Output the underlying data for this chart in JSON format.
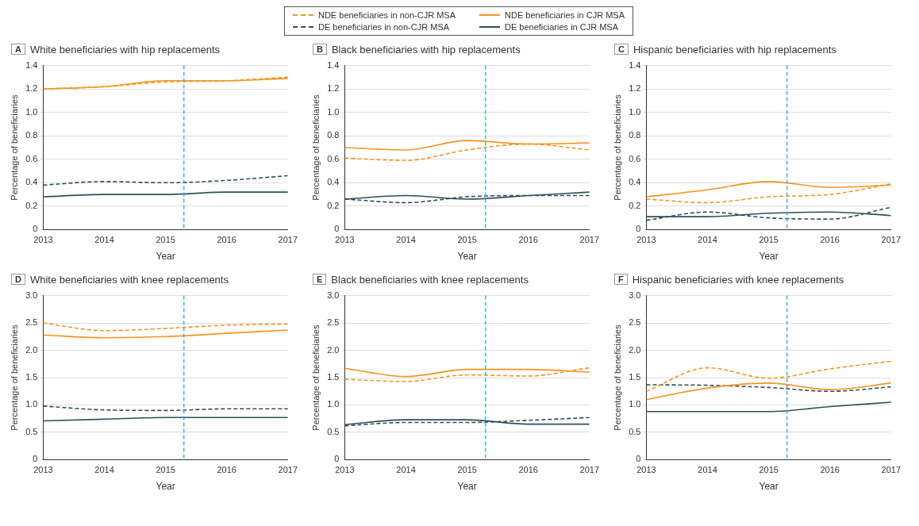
{
  "chart_data": [
    {
      "type": "line",
      "title": "White beneficiaries with hip replacements",
      "annotations": [
        "A"
      ],
      "xlabel": "Year",
      "ylabel": "Percentage of beneficiaries",
      "x": [
        2013,
        2014,
        2015,
        2016,
        2017
      ],
      "xlim": [
        2013,
        2017
      ],
      "xticks": [
        2013,
        2014,
        2015,
        2016,
        2017
      ],
      "ylim": [
        0,
        1.4
      ],
      "yticks": [
        {
          "value": 0,
          "label": "0"
        },
        {
          "value": 0.2,
          "label": "0.2"
        },
        {
          "value": 0.4,
          "label": "0.4"
        },
        {
          "value": 0.6,
          "label": "0.6"
        },
        {
          "value": 0.8,
          "label": "0.8"
        },
        {
          "value": 1,
          "label": "1.0"
        },
        {
          "value": 1.2,
          "label": "1.2"
        },
        {
          "value": 1.4,
          "label": "1.4"
        }
      ],
      "grid": "y",
      "legend": "top",
      "marker": "none",
      "ref_lines": [
        {
          "axis": "x",
          "value": 2015.3,
          "color": "#29abe2",
          "line_style": "dashed"
        }
      ],
      "series": [
        {
          "name": "NDE beneficiaries in non-CJR MSA",
          "color": "#f7941d",
          "line_style": "dashed",
          "values": [
            1.2,
            1.22,
            1.26,
            1.27,
            1.3
          ]
        },
        {
          "name": "NDE beneficiaries in CJR MSA",
          "color": "#f7941d",
          "line_style": "solid",
          "values": [
            1.2,
            1.22,
            1.27,
            1.27,
            1.29
          ]
        },
        {
          "name": "DE beneficiaries in non-CJR MSA",
          "color": "#2f4f5a",
          "line_style": "dashed",
          "values": [
            0.38,
            0.41,
            0.4,
            0.42,
            0.46
          ]
        },
        {
          "name": "DE beneficiaries in CJR MSA",
          "color": "#2f4f5a",
          "line_style": "solid",
          "values": [
            0.28,
            0.3,
            0.3,
            0.32,
            0.32
          ]
        }
      ]
    },
    {
      "type": "line",
      "title": "Black beneficiaries with hip replacements",
      "annotations": [
        "B"
      ],
      "xlabel": "Year",
      "ylabel": "Percentage of beneficiaries",
      "x": [
        2013,
        2014,
        2015,
        2016,
        2017
      ],
      "xlim": [
        2013,
        2017
      ],
      "xticks": [
        2013,
        2014,
        2015,
        2016,
        2017
      ],
      "ylim": [
        0,
        1.4
      ],
      "yticks": [
        {
          "value": 0,
          "label": "0"
        },
        {
          "value": 0.2,
          "label": "0.2"
        },
        {
          "value": 0.4,
          "label": "0.4"
        },
        {
          "value": 0.6,
          "label": "0.6"
        },
        {
          "value": 0.8,
          "label": "0.8"
        },
        {
          "value": 1,
          "label": "1.0"
        },
        {
          "value": 1.2,
          "label": "1.2"
        },
        {
          "value": 1.4,
          "label": "1.4"
        }
      ],
      "grid": "y",
      "marker": "none",
      "ref_lines": [
        {
          "axis": "x",
          "value": 2015.3,
          "color": "#29abe2",
          "line_style": "dashed"
        }
      ],
      "series": [
        {
          "color": "#f7941d",
          "line_style": "dashed",
          "values": [
            0.61,
            0.59,
            0.68,
            0.73,
            0.68
          ]
        },
        {
          "color": "#f7941d",
          "line_style": "solid",
          "values": [
            0.7,
            0.68,
            0.76,
            0.73,
            0.74
          ]
        },
        {
          "color": "#2f4f5a",
          "line_style": "dashed",
          "values": [
            0.26,
            0.23,
            0.28,
            0.29,
            0.29
          ]
        },
        {
          "color": "#2f4f5a",
          "line_style": "solid",
          "values": [
            0.26,
            0.29,
            0.26,
            0.29,
            0.32
          ]
        }
      ]
    },
    {
      "type": "line",
      "title": "Hispanic beneficiaries with hip replacements",
      "annotations": [
        "C"
      ],
      "xlabel": "Year",
      "ylabel": "Percentage of beneficiaries",
      "x": [
        2013,
        2014,
        2015,
        2016,
        2017
      ],
      "xlim": [
        2013,
        2017
      ],
      "xticks": [
        2013,
        2014,
        2015,
        2016,
        2017
      ],
      "ylim": [
        0,
        1.4
      ],
      "yticks": [
        {
          "value": 0,
          "label": "0"
        },
        {
          "value": 0.2,
          "label": "0.2"
        },
        {
          "value": 0.4,
          "label": "0.4"
        },
        {
          "value": 0.6,
          "label": "0.6"
        },
        {
          "value": 0.8,
          "label": "0.8"
        },
        {
          "value": 1,
          "label": "1.0"
        },
        {
          "value": 1.2,
          "label": "1.2"
        },
        {
          "value": 1.4,
          "label": "1.4"
        }
      ],
      "grid": "y",
      "marker": "none",
      "ref_lines": [
        {
          "axis": "x",
          "value": 2015.3,
          "color": "#29abe2",
          "line_style": "dashed"
        }
      ],
      "series": [
        {
          "color": "#f7941d",
          "line_style": "dashed",
          "values": [
            0.26,
            0.23,
            0.28,
            0.3,
            0.39
          ]
        },
        {
          "color": "#f7941d",
          "line_style": "solid",
          "values": [
            0.28,
            0.34,
            0.41,
            0.36,
            0.38
          ]
        },
        {
          "color": "#2f4f5a",
          "line_style": "dashed",
          "values": [
            0.08,
            0.15,
            0.1,
            0.09,
            0.19
          ]
        },
        {
          "color": "#2f4f5a",
          "line_style": "solid",
          "values": [
            0.11,
            0.11,
            0.14,
            0.15,
            0.12
          ]
        }
      ]
    },
    {
      "type": "line",
      "title": "White beneficiaries with knee replacements",
      "annotations": [
        "D"
      ],
      "xlabel": "Year",
      "ylabel": "Percentage of beneficiaries",
      "x": [
        2013,
        2014,
        2015,
        2016,
        2017
      ],
      "xlim": [
        2013,
        2017
      ],
      "xticks": [
        2013,
        2014,
        2015,
        2016,
        2017
      ],
      "ylim": [
        0,
        3
      ],
      "yticks": [
        {
          "value": 0,
          "label": "0"
        },
        {
          "value": 0.5,
          "label": "0.5"
        },
        {
          "value": 1,
          "label": "1.0"
        },
        {
          "value": 1.5,
          "label": "1.5"
        },
        {
          "value": 2,
          "label": "2.0"
        },
        {
          "value": 2.5,
          "label": "2.5"
        },
        {
          "value": 3,
          "label": "3.0"
        }
      ],
      "grid": "y",
      "marker": "none",
      "ref_lines": [
        {
          "axis": "x",
          "value": 2015.3,
          "color": "#29abe2",
          "line_style": "dashed"
        }
      ],
      "series": [
        {
          "color": "#f7941d",
          "line_style": "dashed",
          "values": [
            2.5,
            2.36,
            2.4,
            2.46,
            2.48
          ]
        },
        {
          "color": "#f7941d",
          "line_style": "solid",
          "values": [
            2.28,
            2.23,
            2.25,
            2.31,
            2.37
          ]
        },
        {
          "color": "#2f4f5a",
          "line_style": "dashed",
          "values": [
            0.98,
            0.91,
            0.9,
            0.93,
            0.93
          ]
        },
        {
          "color": "#2f4f5a",
          "line_style": "solid",
          "values": [
            0.71,
            0.74,
            0.77,
            0.77,
            0.77
          ]
        }
      ]
    },
    {
      "type": "line",
      "title": "Black beneficiaries with knee replacements",
      "annotations": [
        "E"
      ],
      "xlabel": "Year",
      "ylabel": "Percentage of beneficiaries",
      "x": [
        2013,
        2014,
        2015,
        2016,
        2017
      ],
      "xlim": [
        2013,
        2017
      ],
      "xticks": [
        2013,
        2014,
        2015,
        2016,
        2017
      ],
      "ylim": [
        0,
        3
      ],
      "yticks": [
        {
          "value": 0,
          "label": "0"
        },
        {
          "value": 0.5,
          "label": "0.5"
        },
        {
          "value": 1,
          "label": "1.0"
        },
        {
          "value": 1.5,
          "label": "1.5"
        },
        {
          "value": 2,
          "label": "2.0"
        },
        {
          "value": 2.5,
          "label": "2.5"
        },
        {
          "value": 3,
          "label": "3.0"
        }
      ],
      "grid": "y",
      "marker": "none",
      "ref_lines": [
        {
          "axis": "x",
          "value": 2015.3,
          "color": "#29abe2",
          "line_style": "dashed"
        }
      ],
      "series": [
        {
          "color": "#f7941d",
          "line_style": "dashed",
          "values": [
            1.47,
            1.43,
            1.55,
            1.53,
            1.68
          ]
        },
        {
          "color": "#f7941d",
          "line_style": "solid",
          "values": [
            1.67,
            1.52,
            1.65,
            1.65,
            1.6
          ]
        },
        {
          "color": "#2f4f5a",
          "line_style": "dashed",
          "values": [
            0.62,
            0.68,
            0.68,
            0.72,
            0.77
          ]
        },
        {
          "color": "#2f4f5a",
          "line_style": "solid",
          "values": [
            0.64,
            0.73,
            0.73,
            0.65,
            0.65
          ]
        }
      ]
    },
    {
      "type": "line",
      "title": "Hispanic beneficiaries with knee replacements",
      "annotations": [
        "F"
      ],
      "xlabel": "Year",
      "ylabel": "Percentage of beneficiaries",
      "x": [
        2013,
        2014,
        2015,
        2016,
        2017
      ],
      "xlim": [
        2013,
        2017
      ],
      "xticks": [
        2013,
        2014,
        2015,
        2016,
        2017
      ],
      "ylim": [
        0,
        3
      ],
      "yticks": [
        {
          "value": 0,
          "label": "0"
        },
        {
          "value": 0.5,
          "label": "0.5"
        },
        {
          "value": 1,
          "label": "1.0"
        },
        {
          "value": 1.5,
          "label": "1.5"
        },
        {
          "value": 2,
          "label": "2.0"
        },
        {
          "value": 2.5,
          "label": "2.5"
        },
        {
          "value": 3,
          "label": "3.0"
        }
      ],
      "grid": "y",
      "marker": "none",
      "ref_lines": [
        {
          "axis": "x",
          "value": 2015.3,
          "color": "#29abe2",
          "line_style": "dashed"
        }
      ],
      "series": [
        {
          "color": "#f7941d",
          "line_style": "dashed",
          "values": [
            1.25,
            1.68,
            1.49,
            1.66,
            1.8
          ]
        },
        {
          "color": "#f7941d",
          "line_style": "solid",
          "values": [
            1.1,
            1.31,
            1.4,
            1.28,
            1.4
          ]
        },
        {
          "color": "#2f4f5a",
          "line_style": "dashed",
          "values": [
            1.37,
            1.36,
            1.32,
            1.25,
            1.33
          ]
        },
        {
          "color": "#2f4f5a",
          "line_style": "solid",
          "values": [
            0.88,
            0.88,
            0.88,
            0.97,
            1.05
          ]
        }
      ]
    }
  ]
}
